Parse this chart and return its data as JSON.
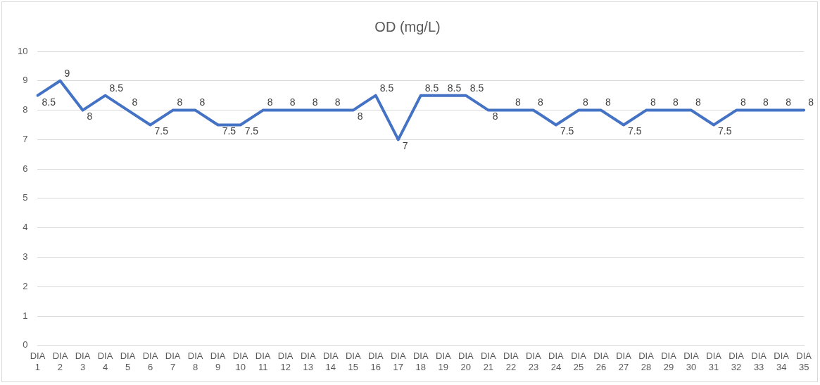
{
  "chart_data": {
    "type": "line",
    "title": "OD (mg/L)",
    "categories": [
      "DIA 1",
      "DIA 2",
      "DIA 3",
      "DIA 4",
      "DIA 5",
      "DIA 6",
      "DIA 7",
      "DIA 8",
      "DIA 9",
      "DIA 10",
      "DIA 11",
      "DIA 12",
      "DIA 13",
      "DIA 14",
      "DIA 15",
      "DIA 16",
      "DIA 17",
      "DIA 18",
      "DIA 19",
      "DIA 20",
      "DIA 21",
      "DIA 22",
      "DIA 23",
      "DIA 24",
      "DIA 25",
      "DIA 26",
      "DIA 27",
      "DIA 28",
      "DIA 29",
      "DIA 30",
      "DIA 31",
      "DIA 32",
      "DIA 33",
      "DIA 34",
      "DIA 35"
    ],
    "series": [
      {
        "color": "#4472c4",
        "values": [
          8.5,
          9,
          8,
          8.5,
          8,
          7.5,
          8,
          8,
          7.5,
          7.5,
          8,
          8,
          8,
          8,
          8,
          8.5,
          7,
          8.5,
          8.5,
          8.5,
          8,
          8,
          8,
          7.5,
          8,
          8,
          7.5,
          8,
          8,
          8,
          7.5,
          8,
          8,
          8,
          8
        ]
      }
    ],
    "ylim": [
      0,
      10
    ],
    "yticks": [
      0,
      1,
      2,
      3,
      4,
      5,
      6,
      7,
      8,
      9,
      10
    ],
    "grid": "y",
    "legend": false,
    "marker": "none",
    "line_style": "solid",
    "data_labels": true
  }
}
